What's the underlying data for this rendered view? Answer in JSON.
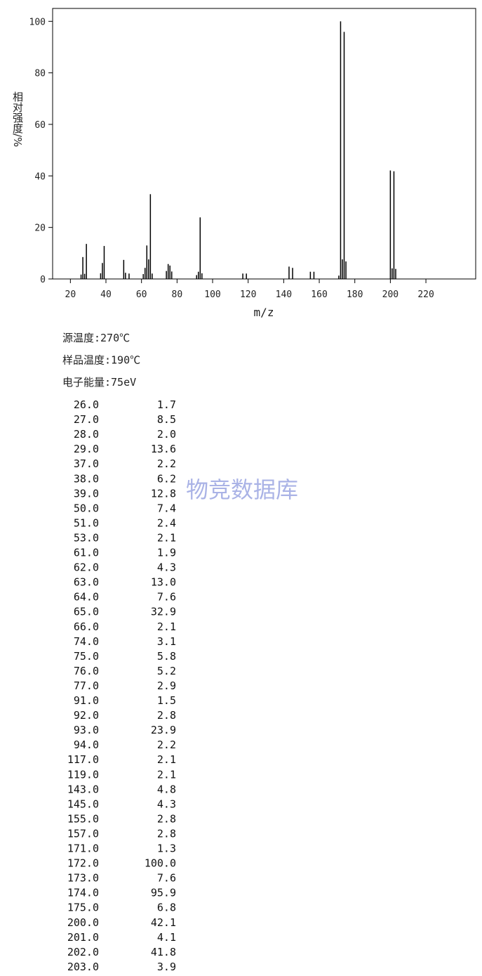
{
  "chart_data": {
    "type": "bar",
    "ylabel": "相对强度/%",
    "xlabel": "m/z",
    "x": [
      26,
      27,
      28,
      29,
      37,
      38,
      39,
      50,
      51,
      53,
      61,
      62,
      63,
      64,
      65,
      66,
      74,
      75,
      76,
      77,
      91,
      92,
      93,
      94,
      117,
      119,
      143,
      145,
      155,
      157,
      171,
      172,
      173,
      174,
      175,
      200,
      201,
      202,
      203
    ],
    "values": [
      1.7,
      8.5,
      2.0,
      13.6,
      2.2,
      6.2,
      12.8,
      7.4,
      2.4,
      2.1,
      1.9,
      4.3,
      13.0,
      7.6,
      32.9,
      2.1,
      3.1,
      5.8,
      5.2,
      2.9,
      1.5,
      2.8,
      23.9,
      2.2,
      2.1,
      2.1,
      4.8,
      4.3,
      2.8,
      2.8,
      1.3,
      100.0,
      7.6,
      95.9,
      6.8,
      42.1,
      4.1,
      41.8,
      3.9
    ],
    "color": "#000000",
    "xlim": [
      10,
      248
    ],
    "ylim": [
      0,
      105
    ],
    "xticks": [
      20,
      40,
      60,
      80,
      100,
      120,
      140,
      160,
      180,
      200,
      220
    ],
    "yticks": [
      0,
      20,
      40,
      60,
      80,
      100
    ]
  },
  "conditions": [
    "源温度:270℃",
    "样品温度:190℃",
    "电子能量:75eV"
  ],
  "watermark": "物竞数据库",
  "table": {
    "rows": [
      [
        "26.0",
        "1.7"
      ],
      [
        "27.0",
        "8.5"
      ],
      [
        "28.0",
        "2.0"
      ],
      [
        "29.0",
        "13.6"
      ],
      [
        "37.0",
        "2.2"
      ],
      [
        "38.0",
        "6.2"
      ],
      [
        "39.0",
        "12.8"
      ],
      [
        "50.0",
        "7.4"
      ],
      [
        "51.0",
        "2.4"
      ],
      [
        "53.0",
        "2.1"
      ],
      [
        "61.0",
        "1.9"
      ],
      [
        "62.0",
        "4.3"
      ],
      [
        "63.0",
        "13.0"
      ],
      [
        "64.0",
        "7.6"
      ],
      [
        "65.0",
        "32.9"
      ],
      [
        "66.0",
        "2.1"
      ],
      [
        "74.0",
        "3.1"
      ],
      [
        "75.0",
        "5.8"
      ],
      [
        "76.0",
        "5.2"
      ],
      [
        "77.0",
        "2.9"
      ],
      [
        "91.0",
        "1.5"
      ],
      [
        "92.0",
        "2.8"
      ],
      [
        "93.0",
        "23.9"
      ],
      [
        "94.0",
        "2.2"
      ],
      [
        "117.0",
        "2.1"
      ],
      [
        "119.0",
        "2.1"
      ],
      [
        "143.0",
        "4.8"
      ],
      [
        "145.0",
        "4.3"
      ],
      [
        "155.0",
        "2.8"
      ],
      [
        "157.0",
        "2.8"
      ],
      [
        "171.0",
        "1.3"
      ],
      [
        "172.0",
        "100.0"
      ],
      [
        "173.0",
        "7.6"
      ],
      [
        "174.0",
        "95.9"
      ],
      [
        "175.0",
        "6.8"
      ],
      [
        "200.0",
        "42.1"
      ],
      [
        "201.0",
        "4.1"
      ],
      [
        "202.0",
        "41.8"
      ],
      [
        "203.0",
        "3.9"
      ]
    ]
  }
}
